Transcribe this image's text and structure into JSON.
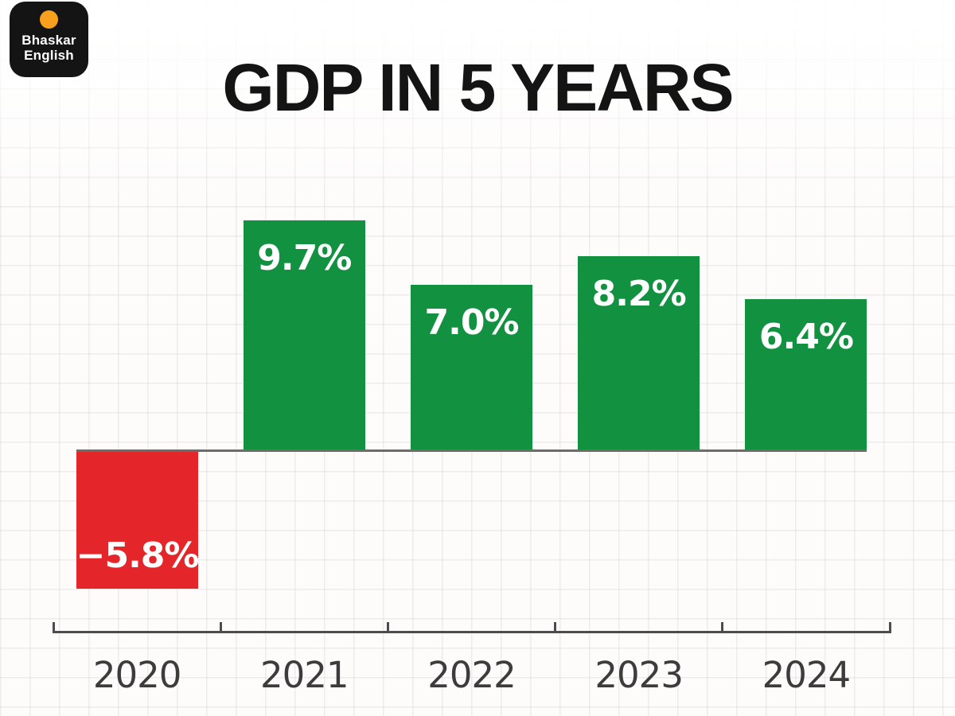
{
  "brand": {
    "name_line1": "Bhaskar",
    "name_line2": "English",
    "badge_bg": "#141414",
    "dot_color": "#f6a01e"
  },
  "header": {
    "title": "GDP IN 5 YEARS"
  },
  "chart_data": {
    "type": "bar",
    "title": "GDP IN 5 YEARS",
    "categories": [
      "2020",
      "2021",
      "2022",
      "2023",
      "2024"
    ],
    "values": [
      -5.8,
      9.7,
      7.0,
      8.2,
      6.4
    ],
    "value_labels": [
      "−5.8%",
      "9.7%",
      "7.0%",
      "8.2%",
      "6.4%"
    ],
    "unit": "%",
    "xlabel": "",
    "ylabel": "",
    "ylim": [
      -7.5,
      10
    ],
    "baseline": 0,
    "grid": true,
    "legend": false,
    "colors": {
      "positive": "#129140",
      "negative": "#e42529",
      "value_label_text": "#ffffff",
      "axis": "#4c4c4c",
      "zero_line": "#6f6b67",
      "category_label": "#3c3c3c"
    }
  }
}
